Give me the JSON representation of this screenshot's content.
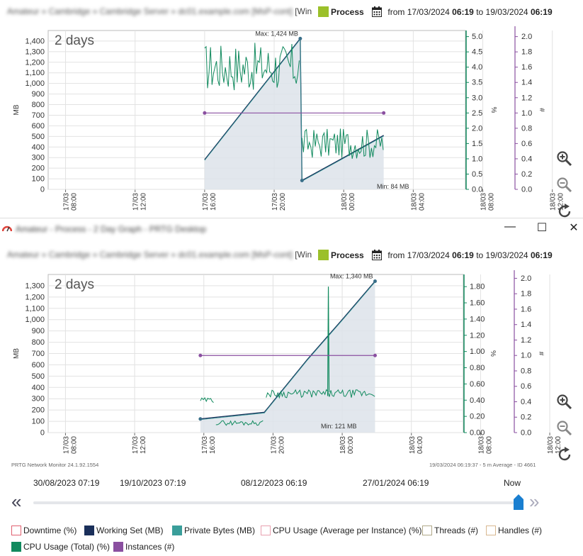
{
  "top": {
    "breadcrumb": "Amateur » Cambridge » Cambridge Server » dc01.example.com [MsP-cont]",
    "breadcrumb_tail": "[Win",
    "sensor_name": "Process",
    "from_label": "from",
    "from_date": "17/03/2024",
    "from_time": "06:19",
    "to_label": "to",
    "to_date": "19/03/2024",
    "to_time": "06:19",
    "graph_label": "2 days",
    "max_label": "Max: 1,424 MB",
    "min_label": "Min: 84 MB"
  },
  "window": {
    "title": "Amateur - Process - 2 Day Graph - PRTG Desktop",
    "minimize": "—",
    "maximize": "☐",
    "close": "✕"
  },
  "bottom": {
    "breadcrumb": "Amateur » Cambridge » Cambridge Server » dc01.example.com [MsP-cont]",
    "breadcrumb_tail": "[Win",
    "sensor_name": "Process",
    "from_label": "from",
    "from_date": "17/03/2024",
    "from_time": "06:19",
    "to_label": "to",
    "to_date": "19/03/2024",
    "to_time": "06:19",
    "graph_label": "2 days",
    "max_label": "Max: 1,340 MB",
    "min_label": "Min: 121 MB",
    "footer_left": "PRTG Network Monitor 24.1.92.1554",
    "footer_right": "19/03/2024 06:19:37 - 5 m Average - ID 4661"
  },
  "timeline": {
    "dates": [
      "30/08/2023 07:19",
      "19/10/2023 07:19",
      "08/12/2023 06:19",
      "27/01/2024 06:19",
      "Now"
    ],
    "position": 1.0
  },
  "legend": [
    {
      "label": "Downtime  (%)",
      "color": "#e06070",
      "filled": false
    },
    {
      "label": "Working Set  (MB)",
      "color": "#1a2f5a",
      "filled": true
    },
    {
      "label": "Private Bytes  (MB)",
      "color": "#3a9e9a",
      "filled": true
    },
    {
      "label": "CPU Usage (Average per Instance)  (%)",
      "color": "#e8a0b0",
      "filled": false
    },
    {
      "label": "Threads  (#)",
      "color": "#b0a888",
      "filled": false
    },
    {
      "label": "Handles  (#)",
      "color": "#d8b890",
      "filled": false
    },
    {
      "label": "CPU Usage (Total)  (%)",
      "color": "#118a5e",
      "filled": true
    },
    {
      "label": "Instances  (#)",
      "color": "#8a4fa0",
      "filled": true
    }
  ],
  "colors": {
    "cpu": "#118a5e",
    "working_set": "#1a2f5a",
    "private": "#3a9e9a",
    "instances": "#8a4fa0",
    "axis_pct": "#118a5e",
    "axis_count": "#8a4fa0"
  },
  "chart_data": [
    {
      "type": "line",
      "title": "2 days",
      "ylabel": "MB",
      "y2label": "%",
      "y3label": "#",
      "ylim": [
        0,
        1500
      ],
      "y2lim": [
        0,
        5.2
      ],
      "y3lim": [
        0,
        2.08
      ],
      "yticks": [
        "0",
        "100",
        "200",
        "300",
        "400",
        "500",
        "600",
        "700",
        "800",
        "900",
        "1,000",
        "1,100",
        "1,200",
        "1,300",
        "1,400"
      ],
      "y2ticks": [
        "0.0",
        "0.5",
        "1.0",
        "1.5",
        "2.0",
        "2.5",
        "3.0",
        "3.5",
        "4.0",
        "4.5",
        "5.0"
      ],
      "y3ticks": [
        "0.0",
        "0.2",
        "0.4",
        "0.6",
        "0.8",
        "1.0",
        "1.2",
        "1.4",
        "1.6",
        "1.8",
        "2.0"
      ],
      "xticks": [
        "17/03\n08:00",
        "17/03\n12:00",
        "17/03\n16:00",
        "17/03\n20:00",
        "18/03\n00:00",
        "18/03\n04:00",
        "18/03\n08:00",
        "18/03\n12:00",
        "18/03\n16:00",
        "18/03\n20:00",
        "19/03\n00:00",
        "19/03\n04:00"
      ],
      "grid": true,
      "series": [
        {
          "name": "Working Set",
          "points": [
            [
              16.0,
              280
            ],
            [
              21.5,
              1424
            ],
            [
              21.6,
              84
            ],
            [
              24.0,
              300
            ],
            [
              26.3,
              510
            ]
          ]
        },
        {
          "name": "Instances",
          "points": [
            [
              16.0,
              1.0
            ],
            [
              26.3,
              1.0
            ]
          ]
        },
        {
          "name": "CPU Usage (Total)",
          "noisy": true,
          "segments": [
            [
              16.0,
              21.5,
              4.0,
              0.8
            ],
            [
              21.6,
              26.3,
              1.5,
              0.5
            ]
          ]
        }
      ]
    },
    {
      "type": "line",
      "title": "2 days",
      "ylabel": "MB",
      "y2label": "%",
      "y3label": "#",
      "ylim": [
        0,
        1400
      ],
      "y2lim": [
        0,
        1.95
      ],
      "y3lim": [
        0,
        2.05
      ],
      "yticks": [
        "0",
        "100",
        "200",
        "300",
        "400",
        "500",
        "600",
        "700",
        "800",
        "900",
        "1,000",
        "1,100",
        "1,200",
        "1,300"
      ],
      "y2ticks": [
        "0.00",
        "0.20",
        "0.40",
        "0.60",
        "0.80",
        "1.00",
        "1.20",
        "1.40",
        "1.60",
        "1.80"
      ],
      "y3ticks": [
        "0.0",
        "0.2",
        "0.4",
        "0.6",
        "0.8",
        "1.0",
        "1.2",
        "1.4",
        "1.6",
        "1.8",
        "2.0"
      ],
      "xticks": [
        "17/03\n08:00",
        "17/03\n12:00",
        "17/03\n16:00",
        "17/03\n20:00",
        "18/03\n00:00",
        "18/03\n04:00",
        "18/03\n08:00",
        "18/03\n12:00",
        "18/03\n16:00",
        "18/03\n20:00",
        "19/03\n00:00",
        "19/03\n04:00"
      ],
      "grid": true,
      "series": [
        {
          "name": "Working Set",
          "points": [
            [
              15.8,
              121
            ],
            [
              19.5,
              180
            ],
            [
              22.0,
              650
            ],
            [
              24.0,
              1000
            ],
            [
              25.9,
              1340
            ]
          ]
        },
        {
          "name": "Instances",
          "points": [
            [
              15.8,
              1.0
            ],
            [
              25.9,
              1.0
            ]
          ]
        },
        {
          "name": "CPU Usage (Total)",
          "noisy": true,
          "segments": [
            [
              15.8,
              16.6,
              0.4,
              0.03
            ],
            [
              16.7,
              19.5,
              0.12,
              0.03
            ],
            [
              19.6,
              25.9,
              0.48,
              0.05
            ]
          ],
          "spike": [
            23.2,
            1.8
          ]
        }
      ]
    }
  ]
}
